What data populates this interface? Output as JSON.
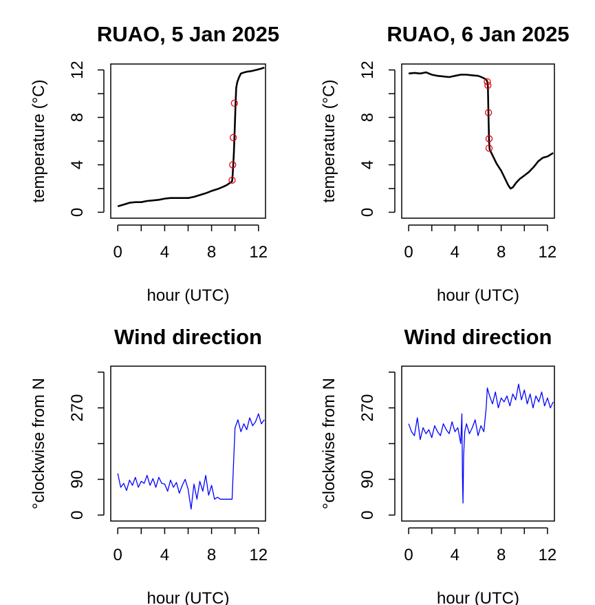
{
  "chart_data": [
    {
      "type": "line",
      "title": "RUAO, 5 Jan 2025",
      "xlabel": "hour (UTC)",
      "ylabel": "temperature (°C)",
      "xlim": [
        -0.6,
        12.6
      ],
      "ylim": [
        -0.5,
        12.5
      ],
      "x_ticks": [
        0,
        4,
        8,
        12
      ],
      "y_ticks": [
        0,
        4,
        8,
        12
      ],
      "series_color": "#000000",
      "marker_color": "#e8000b",
      "series": [
        {
          "x": [
            0,
            0.5,
            1,
            1.5,
            2,
            2.5,
            3,
            3.5,
            4,
            4.5,
            5,
            5.5,
            6,
            6.5,
            7,
            7.5,
            8,
            8.5,
            9,
            9.3,
            9.6,
            9.75,
            9.8,
            9.85,
            9.9,
            9.95,
            10,
            10.05,
            10.1,
            10.2,
            10.35,
            10.5,
            10.8,
            11,
            11.4,
            11.8,
            12.2,
            12.5
          ],
          "y": [
            0.5,
            0.65,
            0.8,
            0.85,
            0.85,
            0.95,
            1.0,
            1.05,
            1.15,
            1.2,
            1.2,
            1.2,
            1.2,
            1.3,
            1.45,
            1.6,
            1.8,
            1.95,
            2.15,
            2.3,
            2.5,
            2.6,
            3.2,
            4.0,
            5.0,
            6.3,
            7.8,
            9.2,
            10.5,
            11.0,
            11.4,
            11.7,
            11.8,
            11.85,
            11.9,
            12.0,
            12.1,
            12.2
          ]
        }
      ],
      "markers": [
        {
          "x": 9.75,
          "y": 2.7
        },
        {
          "x": 9.8,
          "y": 4.0
        },
        {
          "x": 9.85,
          "y": 6.3
        },
        {
          "x": 9.95,
          "y": 9.2
        }
      ]
    },
    {
      "type": "line",
      "title": "RUAO, 6 Jan 2025",
      "xlabel": "hour (UTC)",
      "ylabel": "temperature (°C)",
      "xlim": [
        -0.6,
        12.6
      ],
      "ylim": [
        -0.5,
        12.5
      ],
      "x_ticks": [
        0,
        4,
        8,
        12
      ],
      "y_ticks": [
        0,
        4,
        8,
        12
      ],
      "series_color": "#000000",
      "marker_color": "#e8000b",
      "series": [
        {
          "x": [
            0,
            0.5,
            1,
            1.5,
            2,
            2.5,
            3,
            3.5,
            4,
            4.5,
            5,
            5.5,
            6,
            6.3,
            6.5,
            6.7,
            6.8,
            6.85,
            6.9,
            6.95,
            7,
            7.1,
            7.3,
            7.6,
            8,
            8.3,
            8.6,
            8.8,
            9,
            9.3,
            9.6,
            10,
            10.4,
            10.8,
            11.2,
            11.6,
            12,
            12.5
          ],
          "y": [
            11.7,
            11.75,
            11.7,
            11.8,
            11.6,
            11.5,
            11.45,
            11.4,
            11.5,
            11.6,
            11.6,
            11.55,
            11.5,
            11.4,
            11.3,
            11.2,
            11.0,
            10.6,
            8.3,
            6.0,
            5.3,
            5.1,
            4.7,
            4.1,
            3.5,
            2.9,
            2.3,
            2.0,
            2.1,
            2.5,
            2.8,
            3.1,
            3.4,
            3.8,
            4.3,
            4.6,
            4.7,
            5.0
          ]
        }
      ],
      "markers": [
        {
          "x": 6.8,
          "y": 11.0
        },
        {
          "x": 6.85,
          "y": 10.7
        },
        {
          "x": 6.9,
          "y": 8.4
        },
        {
          "x": 6.95,
          "y": 6.2
        },
        {
          "x": 6.95,
          "y": 5.4
        }
      ]
    },
    {
      "type": "line",
      "title": "Wind direction",
      "xlabel": "hour (UTC)",
      "ylabel": "°clockwise from N",
      "xlim": [
        -0.6,
        12.6
      ],
      "ylim": [
        -15,
        375
      ],
      "x_ticks": [
        0,
        4,
        8,
        12
      ],
      "y_ticks": [
        0,
        90,
        270
      ],
      "series_color": "#0000ff",
      "series": [
        {
          "x": [
            0,
            0.25,
            0.5,
            0.75,
            1,
            1.25,
            1.5,
            1.75,
            2,
            2.25,
            2.5,
            2.75,
            3,
            3.25,
            3.5,
            3.75,
            4,
            4.25,
            4.5,
            4.75,
            5,
            5.25,
            5.5,
            5.75,
            6,
            6.25,
            6.5,
            6.75,
            7,
            7.25,
            7.5,
            7.75,
            8,
            8.25,
            8.5,
            8.75,
            9,
            9.25,
            9.5,
            9.75,
            9.9,
            10,
            10.25,
            10.5,
            10.75,
            11,
            11.25,
            11.5,
            11.75,
            12,
            12.25,
            12.5
          ],
          "y": [
            105,
            70,
            80,
            62,
            88,
            75,
            95,
            70,
            85,
            80,
            100,
            75,
            92,
            70,
            95,
            80,
            78,
            60,
            88,
            70,
            82,
            55,
            75,
            90,
            65,
            15,
            78,
            40,
            85,
            60,
            100,
            50,
            75,
            40,
            45,
            40,
            40,
            40,
            40,
            40,
            150,
            220,
            240,
            210,
            230,
            215,
            245,
            225,
            235,
            255,
            230,
            240
          ]
        }
      ]
    },
    {
      "type": "line",
      "title": "Wind direction",
      "xlabel": "hour (UTC)",
      "ylabel": "°clockwise from N",
      "xlim": [
        -0.6,
        12.6
      ],
      "ylim": [
        -15,
        375
      ],
      "x_ticks": [
        0,
        4,
        8,
        12
      ],
      "y_ticks": [
        0,
        90,
        270
      ],
      "series_color": "#0000ff",
      "series": [
        {
          "x": [
            0,
            0.25,
            0.5,
            0.75,
            1,
            1.25,
            1.5,
            1.75,
            2,
            2.25,
            2.5,
            2.75,
            3,
            3.25,
            3.5,
            3.75,
            4,
            4.25,
            4.5,
            4.6,
            4.65,
            4.7,
            4.75,
            4.85,
            5,
            5.25,
            5.5,
            5.75,
            6,
            6.25,
            6.5,
            6.7,
            6.8,
            7,
            7.25,
            7.5,
            7.75,
            8,
            8.25,
            8.5,
            8.75,
            9,
            9.25,
            9.5,
            9.75,
            10,
            10.25,
            10.5,
            10.75,
            11,
            11.25,
            11.5,
            11.75,
            12,
            12.25,
            12.5
          ],
          "y": [
            230,
            210,
            200,
            245,
            190,
            220,
            205,
            215,
            195,
            225,
            210,
            200,
            230,
            215,
            205,
            235,
            210,
            220,
            180,
            255,
            100,
            30,
            150,
            210,
            230,
            205,
            220,
            240,
            200,
            225,
            210,
            270,
            320,
            300,
            280,
            310,
            270,
            295,
            285,
            300,
            275,
            305,
            290,
            330,
            290,
            315,
            280,
            305,
            270,
            300,
            285,
            310,
            275,
            295,
            270,
            285
          ]
        }
      ]
    }
  ]
}
